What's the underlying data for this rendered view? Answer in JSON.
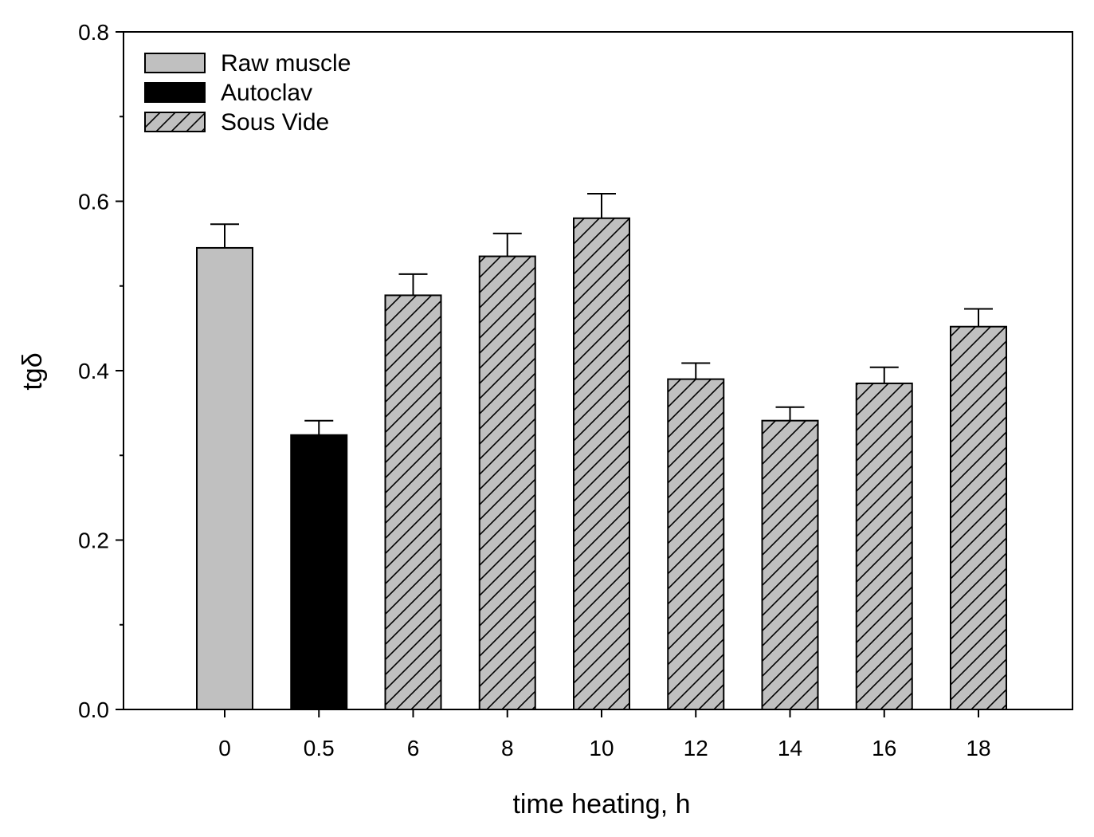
{
  "chart_data": {
    "type": "bar",
    "title": "",
    "xlabel": "time heating, h",
    "ylabel": "tgδ",
    "ylim": [
      0,
      0.8
    ],
    "yticks": [
      "0.0",
      "0.2",
      "0.4",
      "0.6",
      "0.8"
    ],
    "ytick_values": [
      0,
      0.2,
      0.4,
      0.6,
      0.8
    ],
    "grid": false,
    "legend_position": "top-left",
    "categories": [
      "0",
      "0.5",
      "6",
      "8",
      "10",
      "12",
      "14",
      "16",
      "18"
    ],
    "values": [
      0.545,
      0.324,
      0.489,
      0.535,
      0.58,
      0.39,
      0.341,
      0.385,
      0.452
    ],
    "errors": [
      0.028,
      0.017,
      0.025,
      0.027,
      0.029,
      0.019,
      0.016,
      0.019,
      0.021
    ],
    "groups": [
      "Raw muscle",
      "Autoclav",
      "Sous Vide",
      "Sous Vide",
      "Sous Vide",
      "Sous Vide",
      "Sous Vide",
      "Sous Vide",
      "Sous Vide"
    ],
    "legend": [
      {
        "name": "Raw muscle",
        "fill": "#c0c0c0",
        "hatch": false
      },
      {
        "name": "Autoclav",
        "fill": "#000000",
        "hatch": false
      },
      {
        "name": "Sous Vide",
        "fill": "#c0c0c0",
        "hatch": true
      }
    ]
  }
}
